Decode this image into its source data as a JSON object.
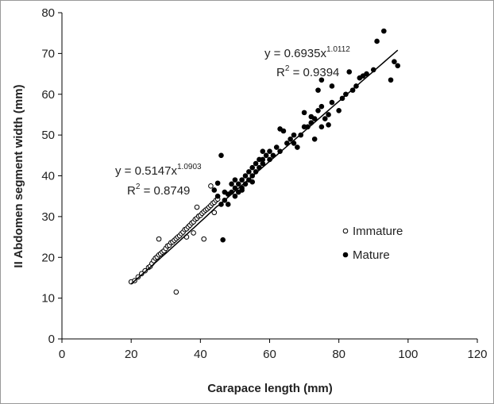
{
  "chart_data": {
    "type": "scatter",
    "xlabel": "Carapace length (mm)",
    "ylabel": "II Abdomen segment width (mm)",
    "xlim": [
      0,
      120
    ],
    "xticks": [
      0,
      20,
      40,
      60,
      80,
      100,
      120
    ],
    "ylim": [
      0,
      80
    ],
    "yticks": [
      0,
      10,
      20,
      30,
      40,
      50,
      60,
      70,
      80
    ],
    "legend": "right",
    "series": [
      {
        "name": "Immature",
        "color": "#000000",
        "marker": "open",
        "x": [
          20,
          21,
          22,
          23,
          24,
          25,
          25.5,
          26,
          26.5,
          27,
          27.5,
          28,
          28.5,
          29,
          29.5,
          30,
          30.5,
          31,
          31.5,
          32,
          32.5,
          33,
          33.5,
          34,
          34.5,
          35,
          35.5,
          36,
          36.5,
          37,
          37.5,
          38,
          38.5,
          39,
          39.5,
          40,
          40.5,
          41,
          41.5,
          42,
          42.5,
          43,
          43.5,
          44,
          44.5,
          45,
          28,
          33,
          41,
          39,
          43,
          38,
          36,
          44
        ],
        "values": [
          14.0,
          14.3,
          15.2,
          16.0,
          16.7,
          17.5,
          17.8,
          18.5,
          19.2,
          19.8,
          20.1,
          20.6,
          20.9,
          21.3,
          21.6,
          22.2,
          22.8,
          23.0,
          23.6,
          23.8,
          24.2,
          24.6,
          25.0,
          25.3,
          25.8,
          26.2,
          26.8,
          27.0,
          27.5,
          27.9,
          28.4,
          28.7,
          29.3,
          29.6,
          30.1,
          30.3,
          30.8,
          31.2,
          31.6,
          31.9,
          32.3,
          32.7,
          33.2,
          33.5,
          34.0,
          34.3,
          24.5,
          11.5,
          24.5,
          32.3,
          37.5,
          26.0,
          25.0,
          31.0
        ]
      },
      {
        "name": "Mature",
        "color": "#000000",
        "marker": "filled",
        "x": [
          44,
          45,
          45,
          46,
          46,
          46.5,
          47,
          47,
          48,
          48,
          49,
          49,
          50,
          50,
          50,
          51,
          51,
          52,
          52,
          53,
          53,
          54,
          54,
          55,
          55,
          56,
          56,
          57,
          57,
          58,
          58,
          59,
          60,
          60,
          61,
          62,
          63,
          63,
          64,
          65,
          66,
          67,
          67,
          68,
          69,
          70,
          70,
          71,
          72,
          73,
          73,
          74,
          74,
          75,
          75,
          76,
          77,
          78,
          78,
          80,
          81,
          82,
          83,
          84,
          85,
          86,
          87,
          88,
          90,
          91,
          93,
          95,
          96,
          97,
          75,
          72,
          77,
          58,
          55,
          52
        ],
        "values": [
          36.5,
          35,
          38.2,
          33,
          45,
          24.3,
          34,
          36,
          35.5,
          33,
          36,
          38,
          37,
          35,
          39,
          38,
          36,
          39,
          37,
          40,
          38,
          41,
          39,
          40,
          42,
          41,
          43,
          42,
          44,
          43,
          46,
          45,
          44,
          46,
          45,
          47,
          46,
          51.5,
          51,
          48,
          49,
          48,
          50,
          47,
          50,
          52,
          55.5,
          52,
          53,
          49,
          54,
          56,
          61,
          52,
          57,
          54,
          55,
          58,
          62,
          56,
          59,
          60,
          65.5,
          61,
          62,
          64,
          64.5,
          65,
          66,
          73,
          75.5,
          63.5,
          68,
          67,
          63.5,
          54.5,
          52.5,
          44,
          38.5,
          36.5
        ]
      }
    ],
    "fits": [
      {
        "lead": "y = ",
        "a": 0.5147,
        "sym": "x",
        "b": 1.0903,
        "r2_sym": "R",
        "r2_sup": "2",
        "r2_eq": " = ",
        "r2": 0.8749,
        "x_range": [
          20,
          45
        ]
      },
      {
        "lead": "y = ",
        "a": 0.6935,
        "sym": "x",
        "b": 1.0112,
        "r2_sym": "R",
        "r2_sup": "2",
        "r2_eq": " = ",
        "r2": 0.9394,
        "x_range": [
          45,
          97
        ]
      }
    ]
  }
}
